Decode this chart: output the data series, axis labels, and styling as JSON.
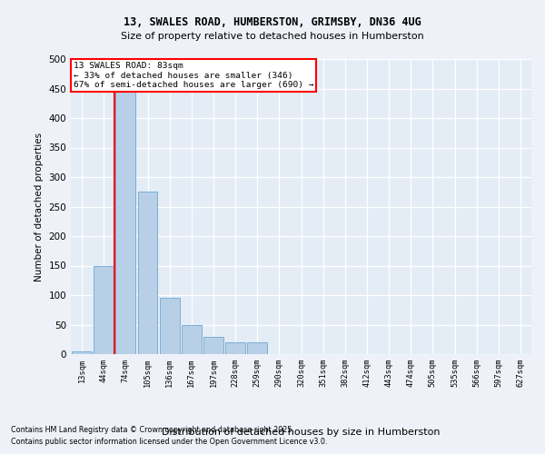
{
  "title1": "13, SWALES ROAD, HUMBERSTON, GRIMSBY, DN36 4UG",
  "title2": "Size of property relative to detached houses in Humberston",
  "xlabel": "Distribution of detached houses by size in Humberston",
  "ylabel": "Number of detached properties",
  "categories": [
    "13sqm",
    "44sqm",
    "74sqm",
    "105sqm",
    "136sqm",
    "167sqm",
    "197sqm",
    "228sqm",
    "259sqm",
    "290sqm",
    "320sqm",
    "351sqm",
    "382sqm",
    "412sqm",
    "443sqm",
    "474sqm",
    "505sqm",
    "535sqm",
    "566sqm",
    "597sqm",
    "627sqm"
  ],
  "values": [
    5,
    150,
    460,
    275,
    95,
    50,
    30,
    20,
    20,
    0,
    0,
    0,
    0,
    0,
    0,
    0,
    0,
    0,
    0,
    0,
    0
  ],
  "bar_color": "#b8cfe8",
  "bar_edge_color": "#7aafd4",
  "red_line_x": 1.5,
  "annotation_line1": "13 SWALES ROAD: 83sqm",
  "annotation_line2": "← 33% of detached houses are smaller (346)",
  "annotation_line3": "67% of semi-detached houses are larger (690) →",
  "footer1": "Contains HM Land Registry data © Crown copyright and database right 2025.",
  "footer2": "Contains public sector information licensed under the Open Government Licence v3.0.",
  "ylim": [
    0,
    500
  ],
  "yticks": [
    0,
    50,
    100,
    150,
    200,
    250,
    300,
    350,
    400,
    450,
    500
  ],
  "bg_color": "#eef2f8",
  "plot_bg_color": "#e4ecf6"
}
